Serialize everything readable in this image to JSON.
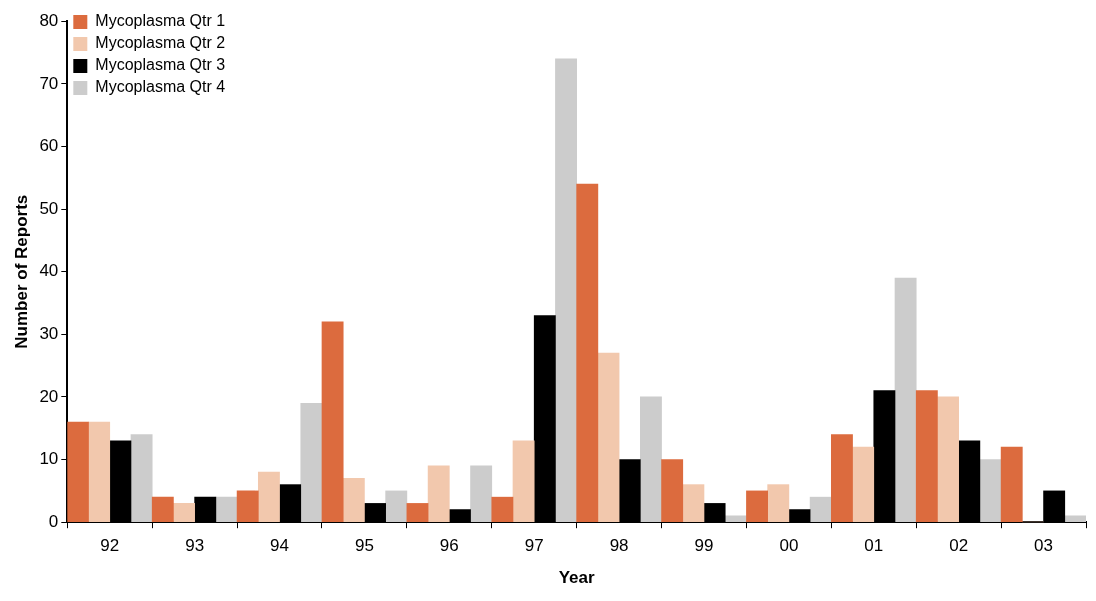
{
  "chart_data": {
    "type": "bar",
    "xlabel": "Year",
    "ylabel": "Number of Reports",
    "categories": [
      "92",
      "93",
      "94",
      "95",
      "96",
      "97",
      "98",
      "99",
      "00",
      "01",
      "02",
      "03"
    ],
    "series": [
      {
        "name": "Mycoplasma Qtr 1",
        "color": "#dc6b3e",
        "values": [
          16,
          4,
          5,
          32,
          3,
          4,
          54,
          10,
          5,
          14,
          21,
          12
        ]
      },
      {
        "name": "Mycoplasma Qtr 2",
        "color": "#f2c8ad",
        "values": [
          16,
          3,
          8,
          7,
          9,
          13,
          27,
          6,
          6,
          12,
          20,
          0
        ]
      },
      {
        "name": "Mycoplasma Qtr 3",
        "color": "#000000",
        "values": [
          13,
          4,
          6,
          3,
          2,
          33,
          10,
          3,
          2,
          21,
          13,
          5
        ]
      },
      {
        "name": "Mycoplasma Qtr 4",
        "color": "#cccccc",
        "values": [
          14,
          4,
          19,
          5,
          9,
          74,
          20,
          1,
          4,
          39,
          10,
          1
        ]
      }
    ],
    "ylim": [
      0,
      80
    ],
    "yticks": [
      0,
      10,
      20,
      30,
      40,
      50,
      60,
      70,
      80
    ],
    "legend": "top left"
  }
}
